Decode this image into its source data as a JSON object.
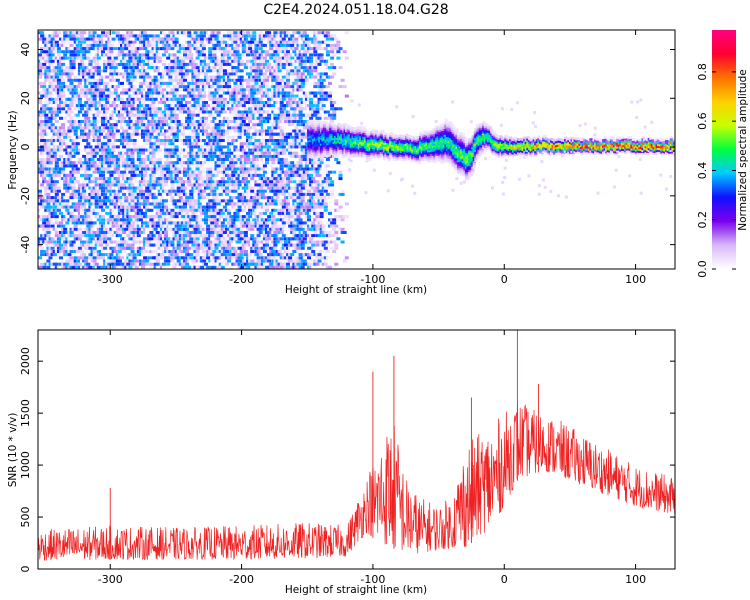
{
  "figure": {
    "title": "C2E4.2024.051.18.04.G28"
  },
  "chart_data": [
    {
      "type": "heatmap",
      "title": "C2E4.2024.051.18.04.G28",
      "xlabel": "Height of straight line (km)",
      "ylabel": "Frequency (Hz)",
      "xlim": [
        -355,
        130
      ],
      "ylim": [
        -50,
        48
      ],
      "xticks": [
        -300,
        -200,
        -100,
        0,
        100
      ],
      "yticks": [
        -40,
        -20,
        0,
        20,
        40
      ],
      "colorbar": {
        "label": "Normalized spectral amplitude",
        "range": [
          0,
          0.97
        ],
        "ticks": [
          0.0,
          0.2,
          0.4,
          0.6,
          0.8
        ],
        "colormap": [
          "#ffffff",
          "#d8b8f8",
          "#7a00ee",
          "#1010ff",
          "#00c8ff",
          "#00ff40",
          "#c8ff00",
          "#ffd000",
          "#ff7000",
          "#ff0030",
          "#ff0080"
        ]
      },
      "noise_region": {
        "x_start": -355,
        "x_end": -120,
        "f_min": -50,
        "f_max": 48
      },
      "signal_track": {
        "x": [
          -150,
          -130,
          -110,
          -90,
          -70,
          -55,
          -45,
          -35,
          -28,
          -20,
          -15,
          -5,
          10,
          30,
          60,
          100,
          130
        ],
        "frequency": [
          3,
          4,
          2,
          1,
          0,
          1,
          3,
          -2,
          -5,
          4,
          5,
          1,
          1,
          1,
          1,
          1,
          1
        ],
        "half_width": [
          5,
          4,
          3.5,
          3,
          3,
          4,
          5,
          5,
          5,
          4,
          3,
          2.5,
          2,
          1.8,
          1.6,
          1.6,
          1.6
        ],
        "peak_amplitude": [
          0.35,
          0.45,
          0.55,
          0.6,
          0.55,
          0.5,
          0.5,
          0.55,
          0.55,
          0.5,
          0.55,
          0.6,
          0.7,
          0.8,
          0.85,
          0.9,
          0.85
        ]
      }
    },
    {
      "type": "area",
      "title": "",
      "xlabel": "Height of straight line (km)",
      "ylabel": "SNR (10 * v/v)",
      "xlim": [
        -355,
        130
      ],
      "ylim": [
        0,
        2300
      ],
      "xticks": [
        -300,
        -200,
        -100,
        0,
        100
      ],
      "yticks": [
        0,
        500,
        1000,
        1500,
        2000
      ],
      "color": "#ee2222",
      "series": [
        {
          "envelope_x": [
            -355,
            -300,
            -250,
            -200,
            -150,
            -120,
            -105,
            -95,
            -85,
            -75,
            -65,
            -50,
            -40,
            -30,
            -20,
            -10,
            0,
            10,
            20,
            30,
            40,
            60,
            80,
            100,
            130
          ],
          "envelope_upper": [
            380,
            420,
            400,
            420,
            450,
            420,
            900,
            1200,
            1500,
            900,
            700,
            620,
            700,
            1200,
            1300,
            1400,
            1500,
            1650,
            1550,
            1500,
            1450,
            1300,
            1150,
            1000,
            880
          ],
          "envelope_lower": [
            80,
            90,
            90,
            90,
            100,
            120,
            350,
            250,
            200,
            150,
            150,
            180,
            200,
            200,
            300,
            400,
            600,
            850,
            900,
            950,
            900,
            800,
            700,
            600,
            520
          ],
          "spikes": [
            {
              "x": -300,
              "y": 780
            },
            {
              "x": -100,
              "y": 1900
            },
            {
              "x": -84,
              "y": 2050
            },
            {
              "x": -25,
              "y": 1650
            },
            {
              "x": 10,
              "y": 2300
            },
            {
              "x": 26,
              "y": 1780
            }
          ]
        }
      ]
    }
  ]
}
